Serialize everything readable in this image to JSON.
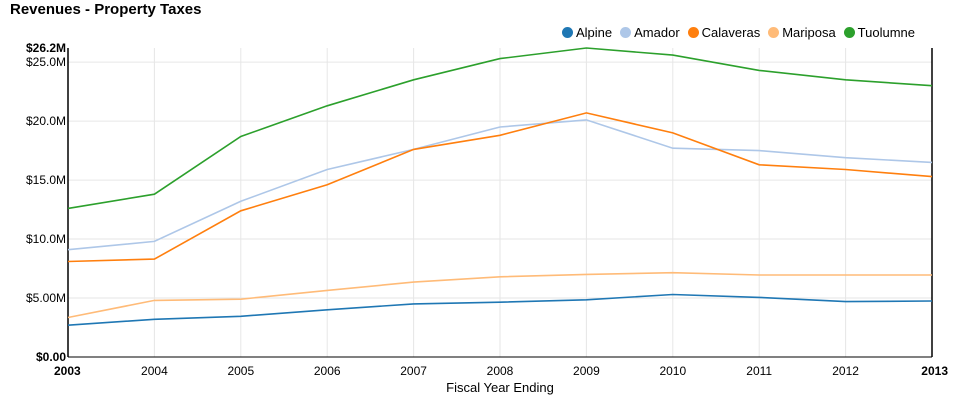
{
  "chart_data": {
    "type": "line",
    "title": "Revenues - Property Taxes",
    "xlabel": "Fiscal Year Ending",
    "ylabel": "",
    "x": [
      2003,
      2004,
      2005,
      2006,
      2007,
      2008,
      2009,
      2010,
      2011,
      2012,
      2013
    ],
    "x_tick_labels": [
      "2003",
      "2004",
      "2005",
      "2006",
      "2007",
      "2008",
      "2009",
      "2010",
      "2011",
      "2012",
      "2013"
    ],
    "ylim": [
      0,
      26.2
    ],
    "y_ticks": [
      0,
      5,
      10,
      15,
      20,
      25
    ],
    "y_tick_labels": [
      "$0.00",
      "$5.00M",
      "$10.0M",
      "$15.0M",
      "$20.0M",
      "$25.0M"
    ],
    "y_max_label": "$26.2M",
    "grid": true,
    "legend_position": "top-right",
    "series": [
      {
        "name": "Alpine",
        "color": "#1f77b4",
        "values": [
          2.7,
          3.2,
          3.45,
          4.0,
          4.5,
          4.65,
          4.85,
          5.3,
          5.05,
          4.7,
          4.75
        ]
      },
      {
        "name": "Amador",
        "color": "#aec7e8",
        "values": [
          9.1,
          9.8,
          13.2,
          15.9,
          17.6,
          19.5,
          20.1,
          17.7,
          17.5,
          16.9,
          16.5
        ]
      },
      {
        "name": "Calaveras",
        "color": "#ff7f0e",
        "values": [
          8.1,
          8.3,
          12.4,
          14.6,
          17.6,
          18.8,
          20.7,
          19.0,
          16.3,
          15.9,
          15.3
        ]
      },
      {
        "name": "Mariposa",
        "color": "#ffbb78",
        "values": [
          3.35,
          4.8,
          4.9,
          5.65,
          6.35,
          6.8,
          7.0,
          7.15,
          6.95,
          6.95,
          6.95
        ]
      },
      {
        "name": "Tuolumne",
        "color": "#2ca02c",
        "values": [
          12.6,
          13.8,
          18.7,
          21.3,
          23.5,
          25.3,
          26.2,
          25.6,
          24.3,
          23.5,
          23.0
        ]
      }
    ]
  }
}
